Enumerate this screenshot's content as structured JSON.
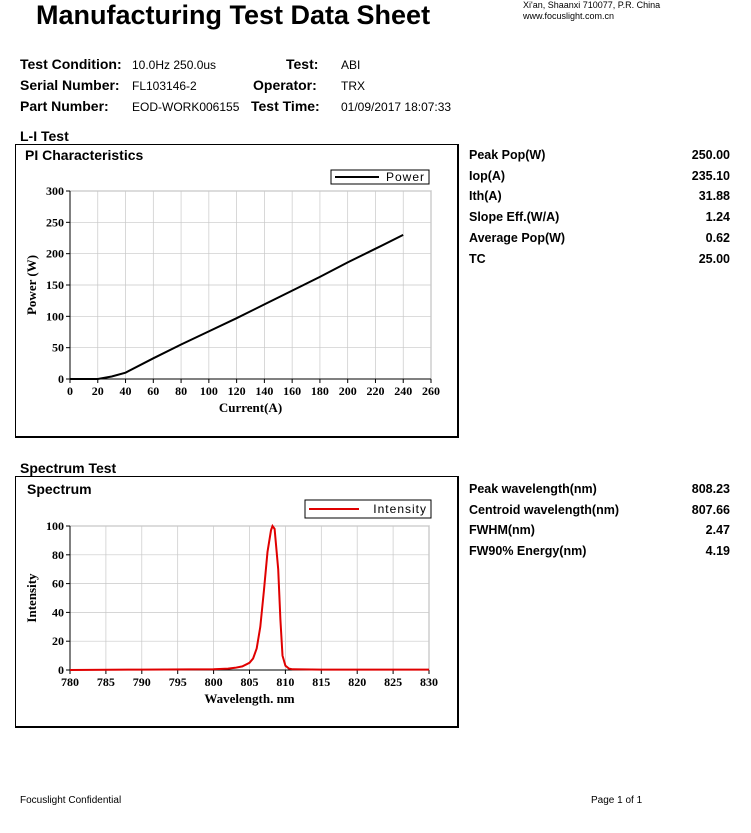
{
  "header": {
    "title": "Manufacturing Test Data Sheet",
    "address_line1": "Xi'an, Shaanxi 710077, P.R. China",
    "address_line2": "www.focuslight.com.cn"
  },
  "info": {
    "test_condition_label": "Test Condition:",
    "test_condition_value": "10.0Hz 250.0us",
    "test_label": "Test:",
    "test_value": "ABI",
    "serial_label": "Serial Number:",
    "serial_value": "FL103146-2",
    "operator_label": "Operator:",
    "operator_value": "TRX",
    "part_label": "Part Number:",
    "part_value": "EOD-WORK006155",
    "time_label": "Test Time:",
    "time_value": "01/09/2017 18:07:33"
  },
  "li_section": {
    "heading": "L-I Test",
    "chart_title": "PI Characteristics",
    "results": [
      {
        "label": "Peak Pop(W)",
        "value": "250.00"
      },
      {
        "label": "Iop(A)",
        "value": "235.10"
      },
      {
        "label": "Ith(A)",
        "value": "31.88"
      },
      {
        "label": "Slope Eff.(W/A)",
        "value": "1.24"
      },
      {
        "label": "Average Pop(W)",
        "value": "0.62"
      },
      {
        "label": "TC",
        "value": "25.00"
      }
    ]
  },
  "spectrum_section": {
    "heading": "Spectrum Test",
    "chart_title": "Spectrum",
    "results": [
      {
        "label": "Peak wavelength(nm)",
        "value": "808.23"
      },
      {
        "label": "Centroid wavelength(nm)",
        "value": "807.66"
      },
      {
        "label": "FWHM(nm)",
        "value": "2.47"
      },
      {
        "label": "FW90% Energy(nm)",
        "value": "4.19"
      }
    ]
  },
  "footer": {
    "left": "Focuslight Confidential",
    "right": "Page 1 of 1"
  },
  "chart_data": [
    {
      "type": "line",
      "title": "PI Characteristics",
      "xlabel": "Current(A)",
      "ylabel": "Power (W)",
      "xlim": [
        0,
        260
      ],
      "ylim": [
        0,
        300
      ],
      "xticks": [
        0,
        20,
        40,
        60,
        80,
        100,
        120,
        140,
        160,
        180,
        200,
        220,
        240,
        260
      ],
      "yticks": [
        0,
        50,
        100,
        150,
        200,
        250,
        300
      ],
      "color": "#000000",
      "series": [
        {
          "name": "Power",
          "x": [
            0,
            10,
            20,
            30,
            40,
            60,
            80,
            100,
            120,
            140,
            160,
            180,
            200,
            220,
            240
          ],
          "y": [
            0,
            0,
            0,
            4,
            10,
            33,
            55,
            76,
            97,
            119,
            141,
            163,
            186,
            208,
            230
          ]
        }
      ]
    },
    {
      "type": "line",
      "title": "Spectrum",
      "xlabel": "Wavelength. nm",
      "ylabel": "Intensity",
      "xlim": [
        780,
        830
      ],
      "ylim": [
        0,
        100
      ],
      "xticks": [
        780,
        785,
        790,
        795,
        800,
        805,
        810,
        815,
        820,
        825,
        830
      ],
      "yticks": [
        0,
        20,
        40,
        60,
        80,
        100
      ],
      "color": "#e00000",
      "series": [
        {
          "name": "Intensity",
          "x": [
            780,
            790,
            800,
            802,
            803,
            804,
            805,
            805.5,
            806,
            806.5,
            807,
            807.5,
            808,
            808.2,
            808.5,
            809,
            809.3,
            809.6,
            810,
            810.5,
            811,
            815,
            820,
            830
          ],
          "y": [
            0,
            0.3,
            0.5,
            1,
            1.5,
            2.5,
            5,
            8,
            15,
            30,
            55,
            82,
            97,
            100,
            98,
            70,
            35,
            10,
            3,
            1,
            0.5,
            0.3,
            0.3,
            0.3
          ]
        }
      ]
    }
  ]
}
